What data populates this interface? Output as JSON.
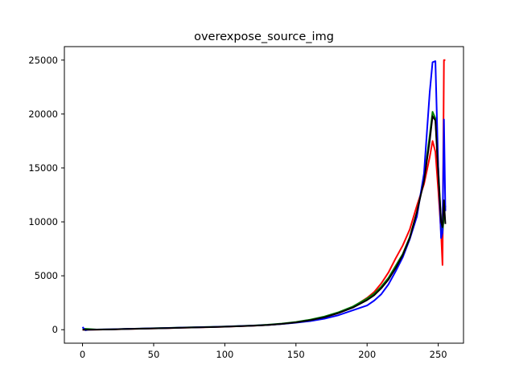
{
  "chart_data": {
    "type": "line",
    "title": "overexpose_source_img",
    "xlabel": "",
    "ylabel": "",
    "xlim": [
      -12.75,
      267.75
    ],
    "ylim": [
      -1250,
      26250
    ],
    "xticks": [
      0,
      50,
      100,
      150,
      200,
      250
    ],
    "yticks": [
      0,
      5000,
      10000,
      15000,
      20000,
      25000
    ],
    "grid": false,
    "legend": "none",
    "series": [
      {
        "color": "#ff0000",
        "x": [
          0,
          10,
          20,
          30,
          40,
          50,
          60,
          70,
          80,
          90,
          100,
          110,
          120,
          130,
          140,
          150,
          160,
          170,
          180,
          190,
          200,
          205,
          210,
          215,
          220,
          225,
          230,
          235,
          240,
          244,
          246,
          248,
          250,
          252,
          253,
          254,
          255
        ],
        "y": [
          0,
          10,
          30,
          60,
          90,
          120,
          150,
          180,
          210,
          240,
          280,
          320,
          370,
          440,
          540,
          680,
          880,
          1150,
          1550,
          2100,
          2950,
          3500,
          4300,
          5300,
          6600,
          7800,
          9300,
          11500,
          13500,
          16000,
          17500,
          16500,
          13000,
          9000,
          6000,
          25000,
          25000
        ]
      },
      {
        "color": "#008000",
        "x": [
          0,
          10,
          20,
          30,
          40,
          50,
          60,
          70,
          80,
          90,
          100,
          110,
          120,
          130,
          140,
          150,
          160,
          170,
          180,
          190,
          200,
          205,
          210,
          215,
          220,
          225,
          230,
          235,
          240,
          244,
          246,
          248,
          250,
          252,
          253,
          254,
          255
        ],
        "y": [
          100,
          20,
          40,
          70,
          100,
          140,
          170,
          200,
          230,
          260,
          300,
          340,
          390,
          460,
          570,
          720,
          930,
          1220,
          1620,
          2150,
          2900,
          3350,
          4000,
          4800,
          5900,
          7000,
          8600,
          10900,
          14000,
          18000,
          20200,
          19600,
          15000,
          10000,
          9000,
          10500,
          11500
        ]
      },
      {
        "color": "#0000ff",
        "x": [
          0,
          2,
          4,
          10,
          20,
          30,
          40,
          50,
          60,
          70,
          80,
          90,
          100,
          110,
          120,
          130,
          140,
          150,
          160,
          170,
          180,
          190,
          200,
          205,
          210,
          215,
          220,
          225,
          230,
          235,
          240,
          244,
          246,
          248,
          250,
          252,
          253,
          254,
          255
        ],
        "y": [
          250,
          -50,
          0,
          20,
          40,
          70,
          100,
          130,
          160,
          190,
          220,
          250,
          290,
          330,
          380,
          440,
          530,
          650,
          800,
          1020,
          1350,
          1800,
          2250,
          2700,
          3300,
          4200,
          5400,
          6700,
          8400,
          10500,
          14500,
          22000,
          24800,
          24900,
          15000,
          8500,
          9000,
          19500,
          11000
        ]
      },
      {
        "color": "#000000",
        "x": [
          0,
          10,
          20,
          30,
          40,
          50,
          60,
          70,
          80,
          90,
          100,
          110,
          120,
          130,
          140,
          150,
          160,
          170,
          180,
          190,
          200,
          205,
          210,
          215,
          220,
          225,
          230,
          235,
          240,
          244,
          246,
          248,
          250,
          252,
          253,
          254,
          255
        ],
        "y": [
          0,
          10,
          30,
          60,
          90,
          120,
          150,
          180,
          210,
          240,
          280,
          320,
          370,
          440,
          540,
          680,
          880,
          1150,
          1550,
          2050,
          2750,
          3200,
          3850,
          4650,
          5700,
          6900,
          8500,
          10900,
          13800,
          17500,
          19800,
          19400,
          14500,
          10000,
          9500,
          12000,
          9800
        ]
      }
    ]
  }
}
